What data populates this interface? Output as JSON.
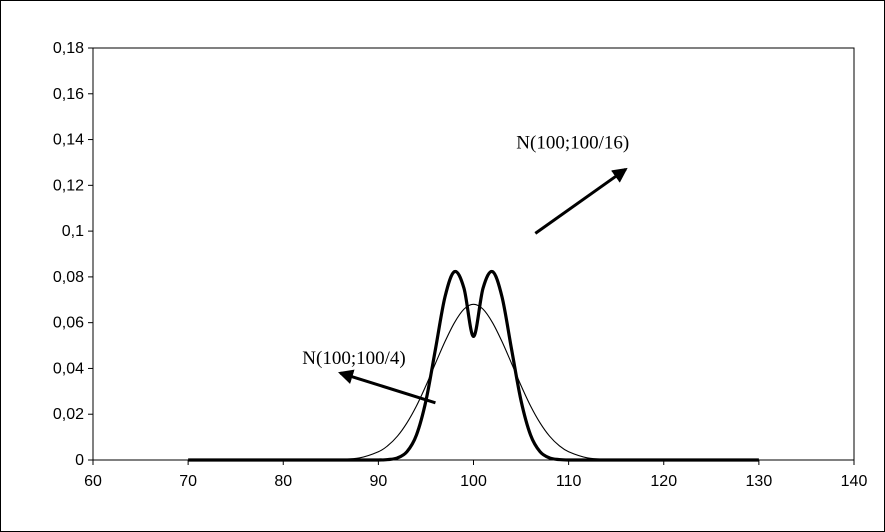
{
  "chart_data": {
    "type": "line",
    "title": "",
    "xlabel": "",
    "ylabel": "",
    "xlim": [
      60,
      140
    ],
    "ylim": [
      0,
      0.18
    ],
    "x_ticks": [
      60,
      70,
      80,
      90,
      100,
      110,
      120,
      130,
      140
    ],
    "x_tick_labels": [
      "60",
      "70",
      "80",
      "90",
      "100",
      "110",
      "120",
      "130",
      "140"
    ],
    "y_ticks": [
      0,
      0.02,
      0.04,
      0.06,
      0.08,
      0.1,
      0.12,
      0.14,
      0.16,
      0.18
    ],
    "y_tick_labels": [
      "0",
      "0,02",
      "0,04",
      "0,06",
      "0,08",
      "0,1",
      "0,12",
      "0,14",
      "0,16",
      "0,18"
    ],
    "grid": false,
    "legend": "none",
    "series": [
      {
        "x": [
          70,
          72,
          74,
          76,
          78,
          80,
          82,
          84,
          86,
          88,
          90,
          91,
          92,
          93,
          94,
          95,
          96,
          97,
          98,
          99,
          100,
          101,
          102,
          103,
          104,
          105,
          106,
          107,
          108,
          109,
          110,
          112,
          114,
          116,
          118,
          120,
          122,
          124,
          126,
          128,
          130
        ],
        "values": [
          0.0,
          0.0,
          0.0,
          0.0,
          0.0,
          0.0,
          0.0,
          0.0,
          0.0,
          0.0,
          0.0,
          0.0002,
          0.0009,
          0.0036,
          0.0109,
          0.0259,
          0.0484,
          0.0712,
          0.0823,
          0.075,
          0.054,
          0.075,
          0.0823,
          0.0712,
          0.0484,
          0.0259,
          0.0109,
          0.0036,
          0.0009,
          0.0002,
          0.0,
          0.0,
          0.0,
          0.0,
          0.0,
          0.0,
          0.0,
          0.0,
          0.0,
          0.0,
          0.0
        ],
        "color": "#000000",
        "line_width": "thick"
      },
      {
        "x": [
          70,
          72,
          74,
          76,
          78,
          80,
          82,
          84,
          86,
          88,
          90,
          91,
          92,
          93,
          94,
          95,
          96,
          97,
          98,
          99,
          100,
          101,
          102,
          103,
          104,
          105,
          106,
          107,
          108,
          109,
          110,
          112,
          114,
          116,
          118,
          120,
          122,
          124,
          126,
          128,
          130
        ],
        "values": [
          0.0,
          0.0,
          0.0,
          0.0,
          0.0,
          0.0,
          0.0,
          0.0001,
          0.0003,
          0.0009,
          0.0036,
          0.0063,
          0.0104,
          0.0162,
          0.0236,
          0.0325,
          0.0422,
          0.0517,
          0.06,
          0.0659,
          0.068,
          0.0659,
          0.06,
          0.0517,
          0.0422,
          0.0325,
          0.0236,
          0.0162,
          0.0104,
          0.0063,
          0.0036,
          0.0009,
          0.0003,
          0.0001,
          0.0,
          0.0,
          0.0,
          0.0,
          0.0,
          0.0,
          0.0
        ],
        "color": "#000000",
        "line_width": "thin"
      }
    ],
    "annotations": [
      {
        "text": "N(100;100/16)",
        "text_x": 104.5,
        "text_y": 0.136,
        "arrow_from": [
          106.5,
          0.099
        ],
        "arrow_to": [
          116,
          0.127
        ]
      },
      {
        "text": "N(100;100/4)",
        "text_x": 82,
        "text_y": 0.042,
        "arrow_from": [
          96,
          0.025
        ],
        "arrow_to": [
          86,
          0.038
        ]
      }
    ]
  }
}
